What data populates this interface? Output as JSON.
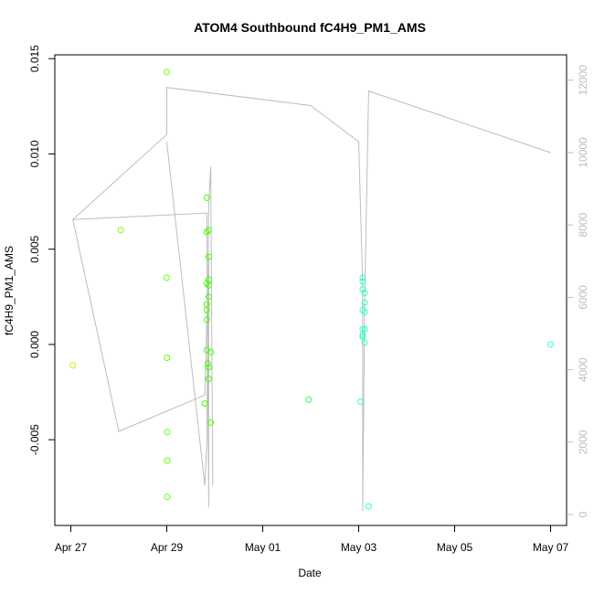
{
  "chart_data": {
    "type": "scatter",
    "title": "ATOM4 Southbound fC4H9_PM1_AMS",
    "xlabel": "Date",
    "ylabel": "fC4H9_PM1_AMS",
    "x_ticks": [
      "Apr 27",
      "Apr 29",
      "May 01",
      "May 03",
      "May 05",
      "May 07"
    ],
    "y_ticks": [
      "-0.005",
      "0.000",
      "0.005",
      "0.010",
      "0.015"
    ],
    "y2_ticks": [
      "0",
      "2000",
      "4000",
      "6000",
      "8000",
      "10000",
      "12000"
    ],
    "xlim": [
      "2016-04-26T16:00",
      "2016-05-07T08:00"
    ],
    "ylim": [
      -0.0095,
      0.0152
    ],
    "y2lim": [
      -300,
      12700
    ],
    "colors": {
      "early": "#7fff00",
      "mid": "#32ff7f",
      "late": "#33ffcc",
      "line": "#bdbdbd"
    },
    "points": [
      {
        "x": "2016-04-27T01:00",
        "y": -0.0011,
        "c": "#b4ff00"
      },
      {
        "x": "2016-04-28T01:00",
        "y": 0.006,
        "c": "#7fff00"
      },
      {
        "x": "2016-04-29T00:00",
        "y": 0.0143,
        "c": "#66ff00"
      },
      {
        "x": "2016-04-29T00:00",
        "y": 0.0035,
        "c": "#66ff00"
      },
      {
        "x": "2016-04-29T00:05",
        "y": -0.0007,
        "c": "#66ff00"
      },
      {
        "x": "2016-04-29T00:10",
        "y": -0.0046,
        "c": "#66ff00"
      },
      {
        "x": "2016-04-29T00:15",
        "y": -0.0061,
        "c": "#66ff00"
      },
      {
        "x": "2016-04-29T00:15",
        "y": -0.008,
        "c": "#66ff00"
      },
      {
        "x": "2016-04-29T19:00",
        "y": -0.0031,
        "c": "#44ff00"
      },
      {
        "x": "2016-04-29T20:00",
        "y": 0.0077,
        "c": "#44ff00"
      },
      {
        "x": "2016-04-29T20:00",
        "y": 0.0059,
        "c": "#44ff00"
      },
      {
        "x": "2016-04-29T20:00",
        "y": 0.0032,
        "c": "#44ff00"
      },
      {
        "x": "2016-04-29T20:00",
        "y": 0.0021,
        "c": "#44ff00"
      },
      {
        "x": "2016-04-29T20:00",
        "y": 0.0018,
        "c": "#44ff00"
      },
      {
        "x": "2016-04-29T20:00",
        "y": 0.0013,
        "c": "#44ff00"
      },
      {
        "x": "2016-04-29T20:00",
        "y": -0.0003,
        "c": "#44ff00"
      },
      {
        "x": "2016-04-29T20:30",
        "y": -0.001,
        "c": "#44ff00"
      },
      {
        "x": "2016-04-29T21:00",
        "y": -0.0012,
        "c": "#44ff00"
      },
      {
        "x": "2016-04-29T21:00",
        "y": -0.0018,
        "c": "#44ff00"
      },
      {
        "x": "2016-04-29T21:00",
        "y": 0.006,
        "c": "#44ff00"
      },
      {
        "x": "2016-04-29T21:00",
        "y": 0.0046,
        "c": "#44ff00"
      },
      {
        "x": "2016-04-29T21:00",
        "y": 0.0034,
        "c": "#44ff00"
      },
      {
        "x": "2016-04-29T21:00",
        "y": 0.0031,
        "c": "#44ff00"
      },
      {
        "x": "2016-04-29T21:00",
        "y": 0.0025,
        "c": "#44ff00"
      },
      {
        "x": "2016-04-29T22:00",
        "y": -0.0004,
        "c": "#44ff00"
      },
      {
        "x": "2016-04-29T22:00",
        "y": -0.0041,
        "c": "#44ff00"
      },
      {
        "x": "2016-05-01T23:00",
        "y": -0.0029,
        "c": "#28ff5a"
      },
      {
        "x": "2016-05-03T01:00",
        "y": -0.003,
        "c": "#2effc8"
      },
      {
        "x": "2016-05-03T02:00",
        "y": 0.0035,
        "c": "#2effc8"
      },
      {
        "x": "2016-05-03T02:00",
        "y": 0.0033,
        "c": "#2effc8"
      },
      {
        "x": "2016-05-03T02:00",
        "y": 0.0029,
        "c": "#2effc8"
      },
      {
        "x": "2016-05-03T02:00",
        "y": 0.0018,
        "c": "#2effc8"
      },
      {
        "x": "2016-05-03T02:00",
        "y": 0.0008,
        "c": "#2effc8"
      },
      {
        "x": "2016-05-03T02:00",
        "y": 0.0005,
        "c": "#2effc8"
      },
      {
        "x": "2016-05-03T02:00",
        "y": 0.0004,
        "c": "#2effc8"
      },
      {
        "x": "2016-05-03T03:00",
        "y": 0.0027,
        "c": "#2effc8"
      },
      {
        "x": "2016-05-03T03:00",
        "y": 0.0022,
        "c": "#2effc8"
      },
      {
        "x": "2016-05-03T03:00",
        "y": 0.0017,
        "c": "#2effc8"
      },
      {
        "x": "2016-05-03T03:00",
        "y": 0.0008,
        "c": "#2effc8"
      },
      {
        "x": "2016-05-03T03:00",
        "y": 0.0001,
        "c": "#2effc8"
      },
      {
        "x": "2016-05-03T05:00",
        "y": -0.0085,
        "c": "#2effc8"
      },
      {
        "x": "2016-05-07T00:00",
        "y": -0.0,
        "c": "#2effdc"
      }
    ],
    "line_series": [
      [
        "2016-04-27T01:00",
        8150
      ],
      [
        "2016-04-29T20:00",
        8330
      ],
      [
        "2016-04-29T21:00",
        200
      ],
      [
        "2016-04-29T21:00",
        7200
      ],
      [
        "2016-04-29T19:00",
        3300
      ],
      [
        "2016-04-28T00:00",
        2300
      ],
      [
        "2016-04-27T01:00",
        8150
      ],
      [
        "2016-04-29T00:00",
        10500
      ],
      [
        "2016-04-29T00:00",
        11800
      ],
      [
        "2016-05-02T00:00",
        11300
      ],
      [
        "2016-05-03T00:00",
        10300
      ],
      [
        "2016-05-03T02:00",
        6300
      ],
      [
        "2016-05-03T02:00",
        100
      ],
      [
        "2016-05-03T03:00",
        6000
      ],
      [
        "2016-05-03T05:00",
        11700
      ],
      [
        "2016-05-07T00:00",
        10000
      ]
    ],
    "line_series_2": [
      [
        "2016-04-29T00:00",
        10300
      ],
      [
        "2016-04-29T19:00",
        800
      ],
      [
        "2016-04-29T20:00",
        2000
      ],
      [
        "2016-04-29T21:00",
        8600
      ],
      [
        "2016-04-29T22:00",
        9600
      ],
      [
        "2016-04-29T23:00",
        800
      ]
    ]
  }
}
